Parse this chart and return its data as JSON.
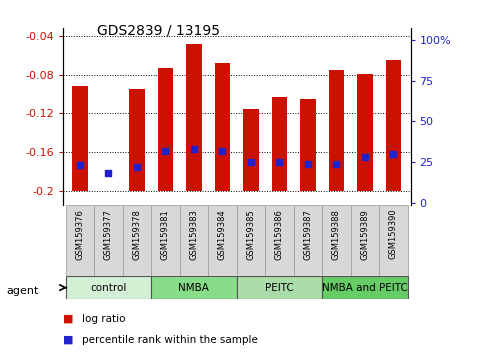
{
  "title": "GDS2839 / 13195",
  "samples": [
    "GSM159376",
    "GSM159377",
    "GSM159378",
    "GSM159381",
    "GSM159383",
    "GSM159384",
    "GSM159385",
    "GSM159386",
    "GSM159387",
    "GSM159388",
    "GSM159389",
    "GSM159390"
  ],
  "log_ratios": [
    -0.092,
    -0.2,
    -0.095,
    -0.073,
    -0.048,
    -0.068,
    -0.115,
    -0.103,
    -0.105,
    -0.075,
    -0.079,
    -0.065
  ],
  "percentile_ranks": [
    23,
    18,
    22,
    32,
    33,
    32,
    25,
    25,
    24,
    24,
    28,
    30
  ],
  "bar_bottom": -0.2,
  "ylim_left": [
    -0.215,
    -0.032
  ],
  "ylim_right": [
    -1.575,
    107.25
  ],
  "yticks_left": [
    -0.2,
    -0.16,
    -0.12,
    -0.08,
    -0.04
  ],
  "ytick_labels_left": [
    "-0.2",
    "-0.16",
    "-0.12",
    "-0.08",
    "-0.04"
  ],
  "yticks_right": [
    0,
    25,
    50,
    75,
    100
  ],
  "ytick_labels_right": [
    "0",
    "25",
    "50",
    "75",
    "100%"
  ],
  "bar_color": "#cc1100",
  "dot_color": "#2222cc",
  "groups": [
    {
      "label": "control",
      "indices": [
        0,
        1,
        2
      ],
      "color": "#d4f0d4"
    },
    {
      "label": "NMBA",
      "indices": [
        3,
        4,
        5
      ],
      "color": "#88dd88"
    },
    {
      "label": "PEITC",
      "indices": [
        6,
        7,
        8
      ],
      "color": "#aaddaa"
    },
    {
      "label": "NMBA and PEITC",
      "indices": [
        9,
        10,
        11
      ],
      "color": "#66cc66"
    }
  ],
  "agent_label": "agent",
  "legend": [
    {
      "label": "log ratio",
      "color": "#cc1100"
    },
    {
      "label": "percentile rank within the sample",
      "color": "#2222cc"
    }
  ],
  "left_tick_color": "#cc1100",
  "right_tick_color": "#2222cc",
  "label_bg_color": "#d8d8d8",
  "label_edge_color": "#999999"
}
